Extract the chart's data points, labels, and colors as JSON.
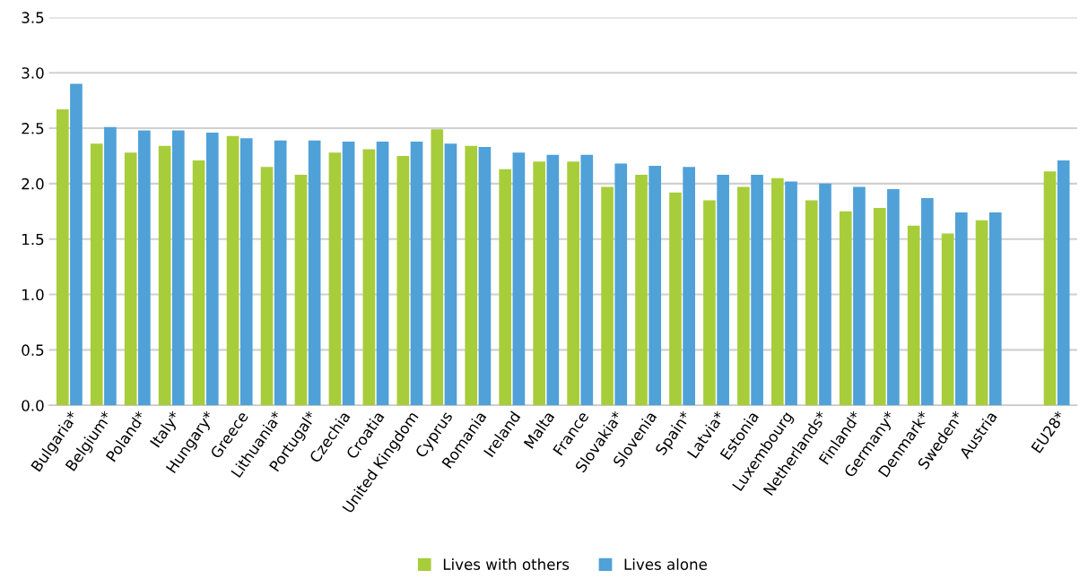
{
  "chart_data": {
    "type": "bar",
    "categories": [
      "Bulgaria*",
      "Belgium*",
      "Poland*",
      "Italy*",
      "Hungary*",
      "Greece",
      "Lithuania*",
      "Portugal*",
      "Czechia",
      "Croatia",
      "United Kingdom",
      "Cyprus",
      "Romania",
      "Ireland",
      "Malta",
      "France",
      "Slovakia*",
      "Slovenia",
      "Spain*",
      "Latvia*",
      "Estonia",
      "Luxembourg",
      "Netherlands*",
      "Finland*",
      "Germany*",
      "Denmark*",
      "Sweden*",
      "Austria",
      null,
      "EU28*"
    ],
    "series": [
      {
        "name": "Lives with others",
        "color": "#a8cd3a",
        "values": [
          2.67,
          2.36,
          2.28,
          2.34,
          2.21,
          2.43,
          2.15,
          2.08,
          2.28,
          2.31,
          2.25,
          2.49,
          2.34,
          2.13,
          2.2,
          2.2,
          1.97,
          2.08,
          1.92,
          1.85,
          1.97,
          2.05,
          1.85,
          1.75,
          1.78,
          1.62,
          1.55,
          1.67,
          null,
          2.11
        ]
      },
      {
        "name": "Lives alone",
        "color": "#4fa1d8",
        "values": [
          2.9,
          2.51,
          2.48,
          2.48,
          2.46,
          2.41,
          2.39,
          2.39,
          2.38,
          2.38,
          2.38,
          2.36,
          2.33,
          2.28,
          2.26,
          2.26,
          2.18,
          2.16,
          2.15,
          2.08,
          2.08,
          2.02,
          2.0,
          1.97,
          1.95,
          1.87,
          1.74,
          1.74,
          null,
          2.21
        ]
      }
    ],
    "ylim": [
      0,
      3.5
    ],
    "yticks": [
      {
        "value": 0,
        "label": "0.0"
      },
      {
        "value": 0.5,
        "label": "0.5"
      },
      {
        "value": 1,
        "label": "1.0"
      },
      {
        "value": 1.5,
        "label": "1.5"
      },
      {
        "value": 2,
        "label": "2.0"
      },
      {
        "value": 2.5,
        "label": "2.5"
      },
      {
        "value": 3,
        "label": "3.0"
      },
      {
        "value": 3.5,
        "label": "3.5"
      }
    ],
    "grid": "y",
    "legend": "bottom"
  }
}
